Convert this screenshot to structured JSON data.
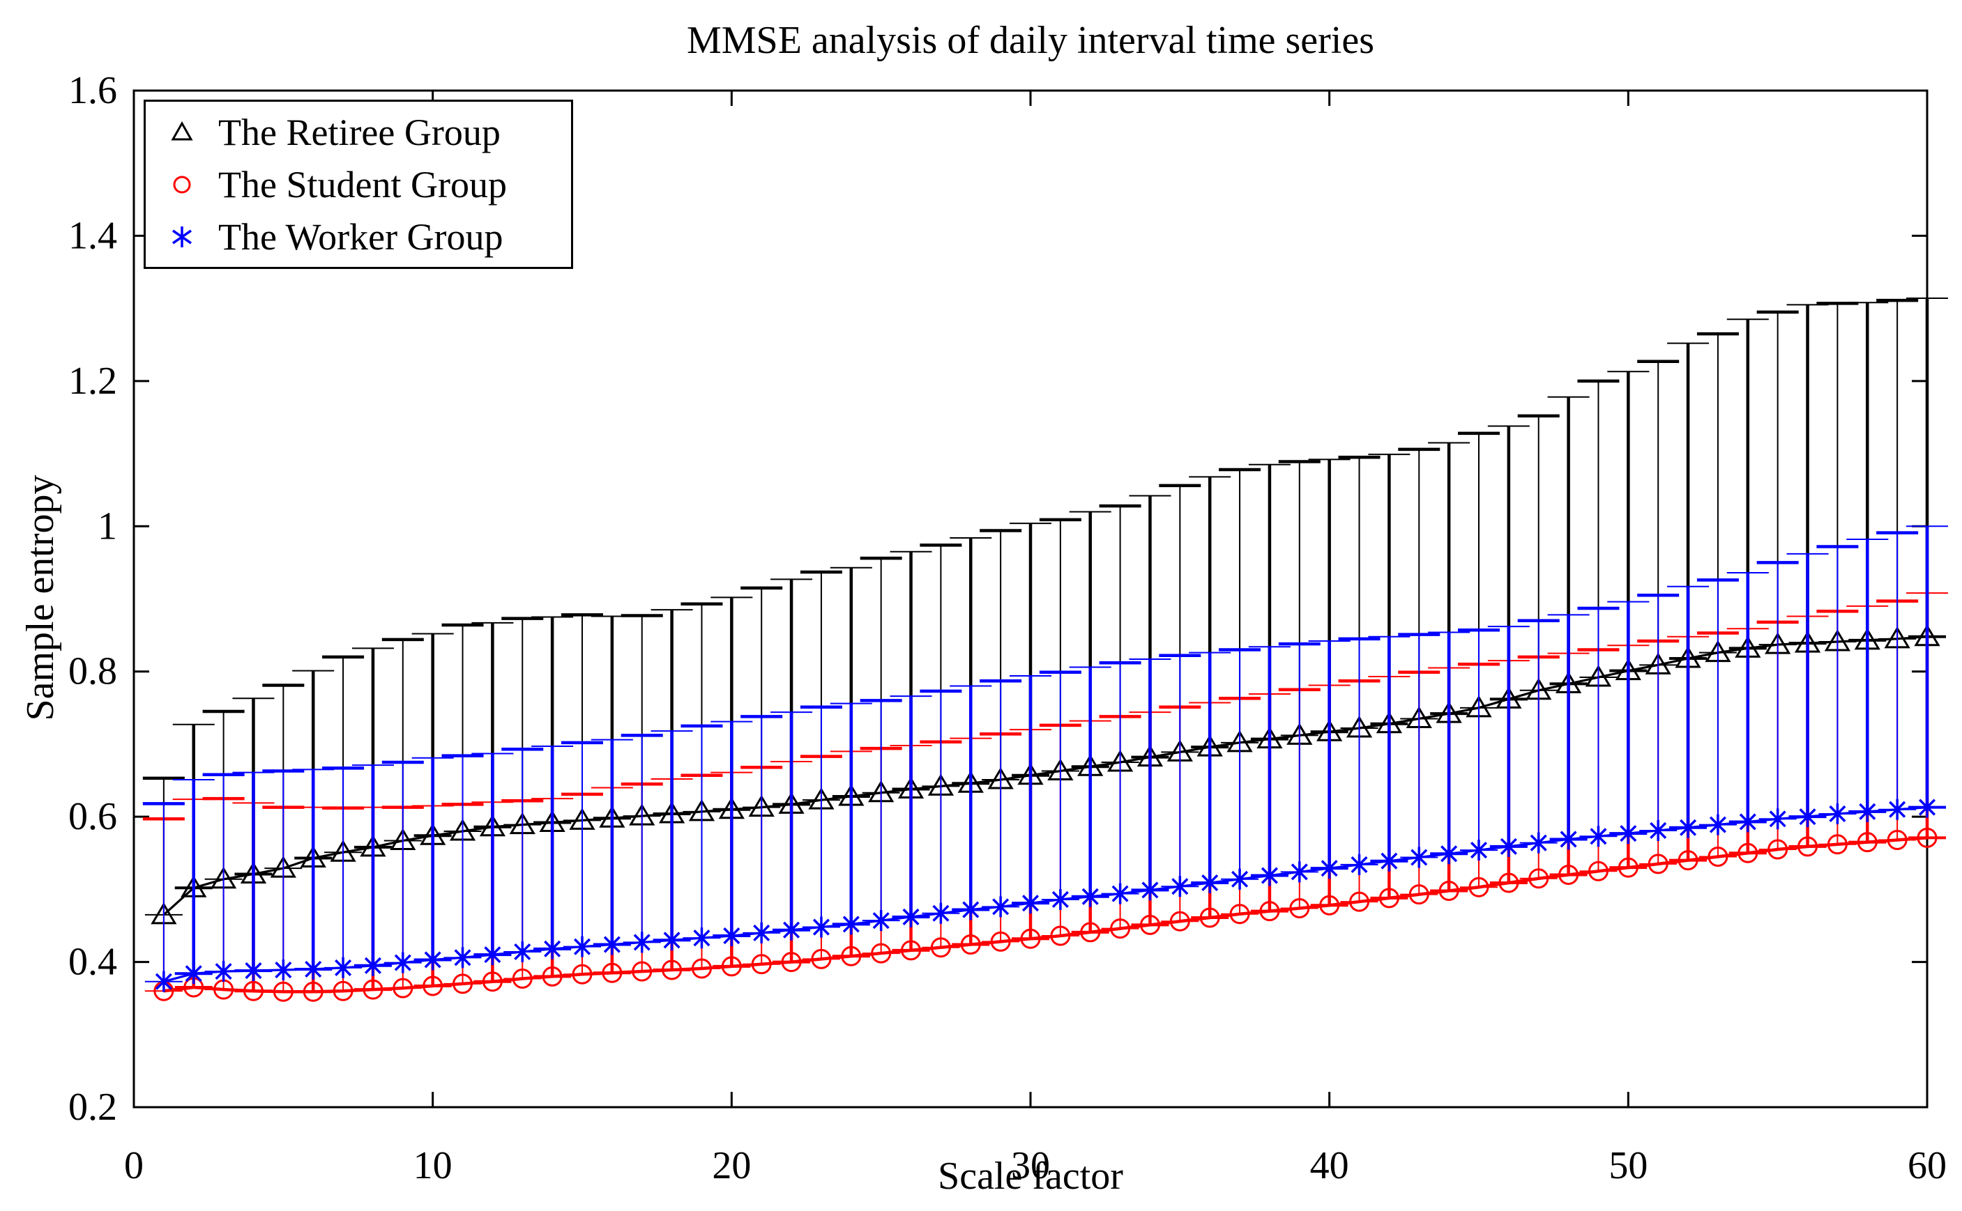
{
  "title": "MMSE analysis of daily interval time series",
  "xlabel": "Scale factor",
  "ylabel": "Sample entropy",
  "legend": {
    "items": [
      {
        "label": "The Retiree Group",
        "marker": "triangle",
        "color": "#000000"
      },
      {
        "label": "The Student Group",
        "marker": "circle",
        "color": "#ff0000"
      },
      {
        "label": "The Worker Group",
        "marker": "asterisk",
        "color": "#0000ff"
      }
    ]
  },
  "chart_data": {
    "type": "line",
    "subtype": "errorbar-upper",
    "title": "MMSE analysis of daily interval time series",
    "xlabel": "Scale factor",
    "ylabel": "Sample entropy",
    "xlim": [
      0,
      60
    ],
    "ylim": [
      0.2,
      1.6
    ],
    "xticks": [
      0,
      10,
      20,
      30,
      40,
      50,
      60
    ],
    "xtick_labels": [
      "0",
      "10",
      "20",
      "30",
      "40",
      "50",
      "60"
    ],
    "yticks": [
      0.2,
      0.4,
      0.6,
      0.8,
      1.0,
      1.2,
      1.4,
      1.6
    ],
    "ytick_labels": [
      "0.2",
      "0.4",
      "0.6",
      "0.8",
      "1",
      "1.2",
      "1.4",
      "1.6"
    ],
    "grid": false,
    "legend_position": "top-left-inside",
    "x": [
      1,
      2,
      3,
      4,
      5,
      6,
      7,
      8,
      9,
      10,
      11,
      12,
      13,
      14,
      15,
      16,
      17,
      18,
      19,
      20,
      21,
      22,
      23,
      24,
      25,
      26,
      27,
      28,
      29,
      30,
      31,
      32,
      33,
      34,
      35,
      36,
      37,
      38,
      39,
      40,
      41,
      42,
      43,
      44,
      45,
      46,
      47,
      48,
      49,
      50,
      51,
      52,
      53,
      54,
      55,
      56,
      57,
      58,
      59,
      60
    ],
    "series": [
      {
        "name": "The Retiree Group",
        "color": "#000000",
        "marker": "triangle",
        "mean": [
          0.465,
          0.502,
          0.514,
          0.521,
          0.529,
          0.543,
          0.551,
          0.558,
          0.567,
          0.574,
          0.58,
          0.586,
          0.589,
          0.592,
          0.595,
          0.598,
          0.601,
          0.604,
          0.607,
          0.61,
          0.613,
          0.617,
          0.623,
          0.628,
          0.633,
          0.638,
          0.642,
          0.646,
          0.651,
          0.657,
          0.663,
          0.669,
          0.675,
          0.682,
          0.689,
          0.696,
          0.702,
          0.707,
          0.712,
          0.717,
          0.722,
          0.728,
          0.735,
          0.742,
          0.75,
          0.762,
          0.774,
          0.783,
          0.792,
          0.801,
          0.809,
          0.818,
          0.826,
          0.832,
          0.837,
          0.839,
          0.841,
          0.843,
          0.845,
          0.848
        ],
        "upper": [
          0.653,
          0.727,
          0.745,
          0.763,
          0.781,
          0.801,
          0.82,
          0.832,
          0.844,
          0.852,
          0.864,
          0.867,
          0.873,
          0.875,
          0.878,
          0.876,
          0.877,
          0.885,
          0.893,
          0.902,
          0.915,
          0.927,
          0.937,
          0.943,
          0.956,
          0.965,
          0.974,
          0.984,
          0.994,
          1.004,
          1.009,
          1.02,
          1.028,
          1.042,
          1.056,
          1.068,
          1.078,
          1.085,
          1.089,
          1.092,
          1.095,
          1.099,
          1.106,
          1.115,
          1.128,
          1.138,
          1.152,
          1.178,
          1.2,
          1.213,
          1.227,
          1.252,
          1.265,
          1.285,
          1.295,
          1.305,
          1.307,
          1.308,
          1.311,
          1.314
        ]
      },
      {
        "name": "The Student Group",
        "color": "#ff0000",
        "marker": "circle",
        "mean": [
          0.36,
          0.365,
          0.362,
          0.36,
          0.359,
          0.359,
          0.36,
          0.362,
          0.364,
          0.367,
          0.37,
          0.373,
          0.377,
          0.38,
          0.383,
          0.385,
          0.387,
          0.389,
          0.391,
          0.394,
          0.397,
          0.4,
          0.404,
          0.408,
          0.412,
          0.416,
          0.42,
          0.424,
          0.428,
          0.432,
          0.436,
          0.441,
          0.446,
          0.451,
          0.456,
          0.461,
          0.466,
          0.47,
          0.474,
          0.478,
          0.483,
          0.488,
          0.493,
          0.498,
          0.503,
          0.509,
          0.515,
          0.52,
          0.525,
          0.53,
          0.535,
          0.54,
          0.545,
          0.55,
          0.555,
          0.559,
          0.562,
          0.565,
          0.568,
          0.571
        ],
        "upper": [
          0.597,
          0.624,
          0.625,
          0.619,
          0.613,
          0.613,
          0.612,
          0.613,
          0.613,
          0.615,
          0.617,
          0.62,
          0.622,
          0.625,
          0.631,
          0.64,
          0.645,
          0.652,
          0.657,
          0.661,
          0.668,
          0.676,
          0.683,
          0.69,
          0.694,
          0.698,
          0.703,
          0.708,
          0.714,
          0.72,
          0.726,
          0.732,
          0.738,
          0.744,
          0.751,
          0.757,
          0.763,
          0.769,
          0.775,
          0.781,
          0.787,
          0.793,
          0.799,
          0.805,
          0.81,
          0.815,
          0.82,
          0.825,
          0.83,
          0.836,
          0.842,
          0.848,
          0.853,
          0.859,
          0.868,
          0.876,
          0.883,
          0.89,
          0.897,
          0.908
        ]
      },
      {
        "name": "The Worker Group",
        "color": "#0000ff",
        "marker": "asterisk",
        "mean": [
          0.373,
          0.384,
          0.387,
          0.388,
          0.389,
          0.39,
          0.392,
          0.395,
          0.399,
          0.403,
          0.406,
          0.41,
          0.414,
          0.418,
          0.421,
          0.424,
          0.427,
          0.43,
          0.433,
          0.436,
          0.44,
          0.444,
          0.448,
          0.452,
          0.457,
          0.462,
          0.467,
          0.472,
          0.476,
          0.481,
          0.486,
          0.49,
          0.494,
          0.499,
          0.504,
          0.509,
          0.514,
          0.519,
          0.524,
          0.529,
          0.534,
          0.539,
          0.544,
          0.549,
          0.554,
          0.559,
          0.564,
          0.569,
          0.573,
          0.577,
          0.581,
          0.585,
          0.589,
          0.593,
          0.597,
          0.6,
          0.604,
          0.607,
          0.61,
          0.613
        ],
        "upper": [
          0.618,
          0.651,
          0.658,
          0.661,
          0.663,
          0.665,
          0.667,
          0.671,
          0.675,
          0.681,
          0.684,
          0.687,
          0.693,
          0.697,
          0.702,
          0.706,
          0.712,
          0.718,
          0.725,
          0.731,
          0.738,
          0.744,
          0.751,
          0.756,
          0.76,
          0.766,
          0.773,
          0.78,
          0.787,
          0.794,
          0.799,
          0.806,
          0.812,
          0.817,
          0.822,
          0.826,
          0.83,
          0.834,
          0.838,
          0.842,
          0.845,
          0.848,
          0.851,
          0.854,
          0.857,
          0.862,
          0.87,
          0.878,
          0.887,
          0.896,
          0.905,
          0.917,
          0.926,
          0.936,
          0.95,
          0.962,
          0.972,
          0.982,
          0.991,
          1.0
        ]
      }
    ],
    "error_bar_note": "bars extend upward only: cap at mean level and cap at upper value"
  }
}
